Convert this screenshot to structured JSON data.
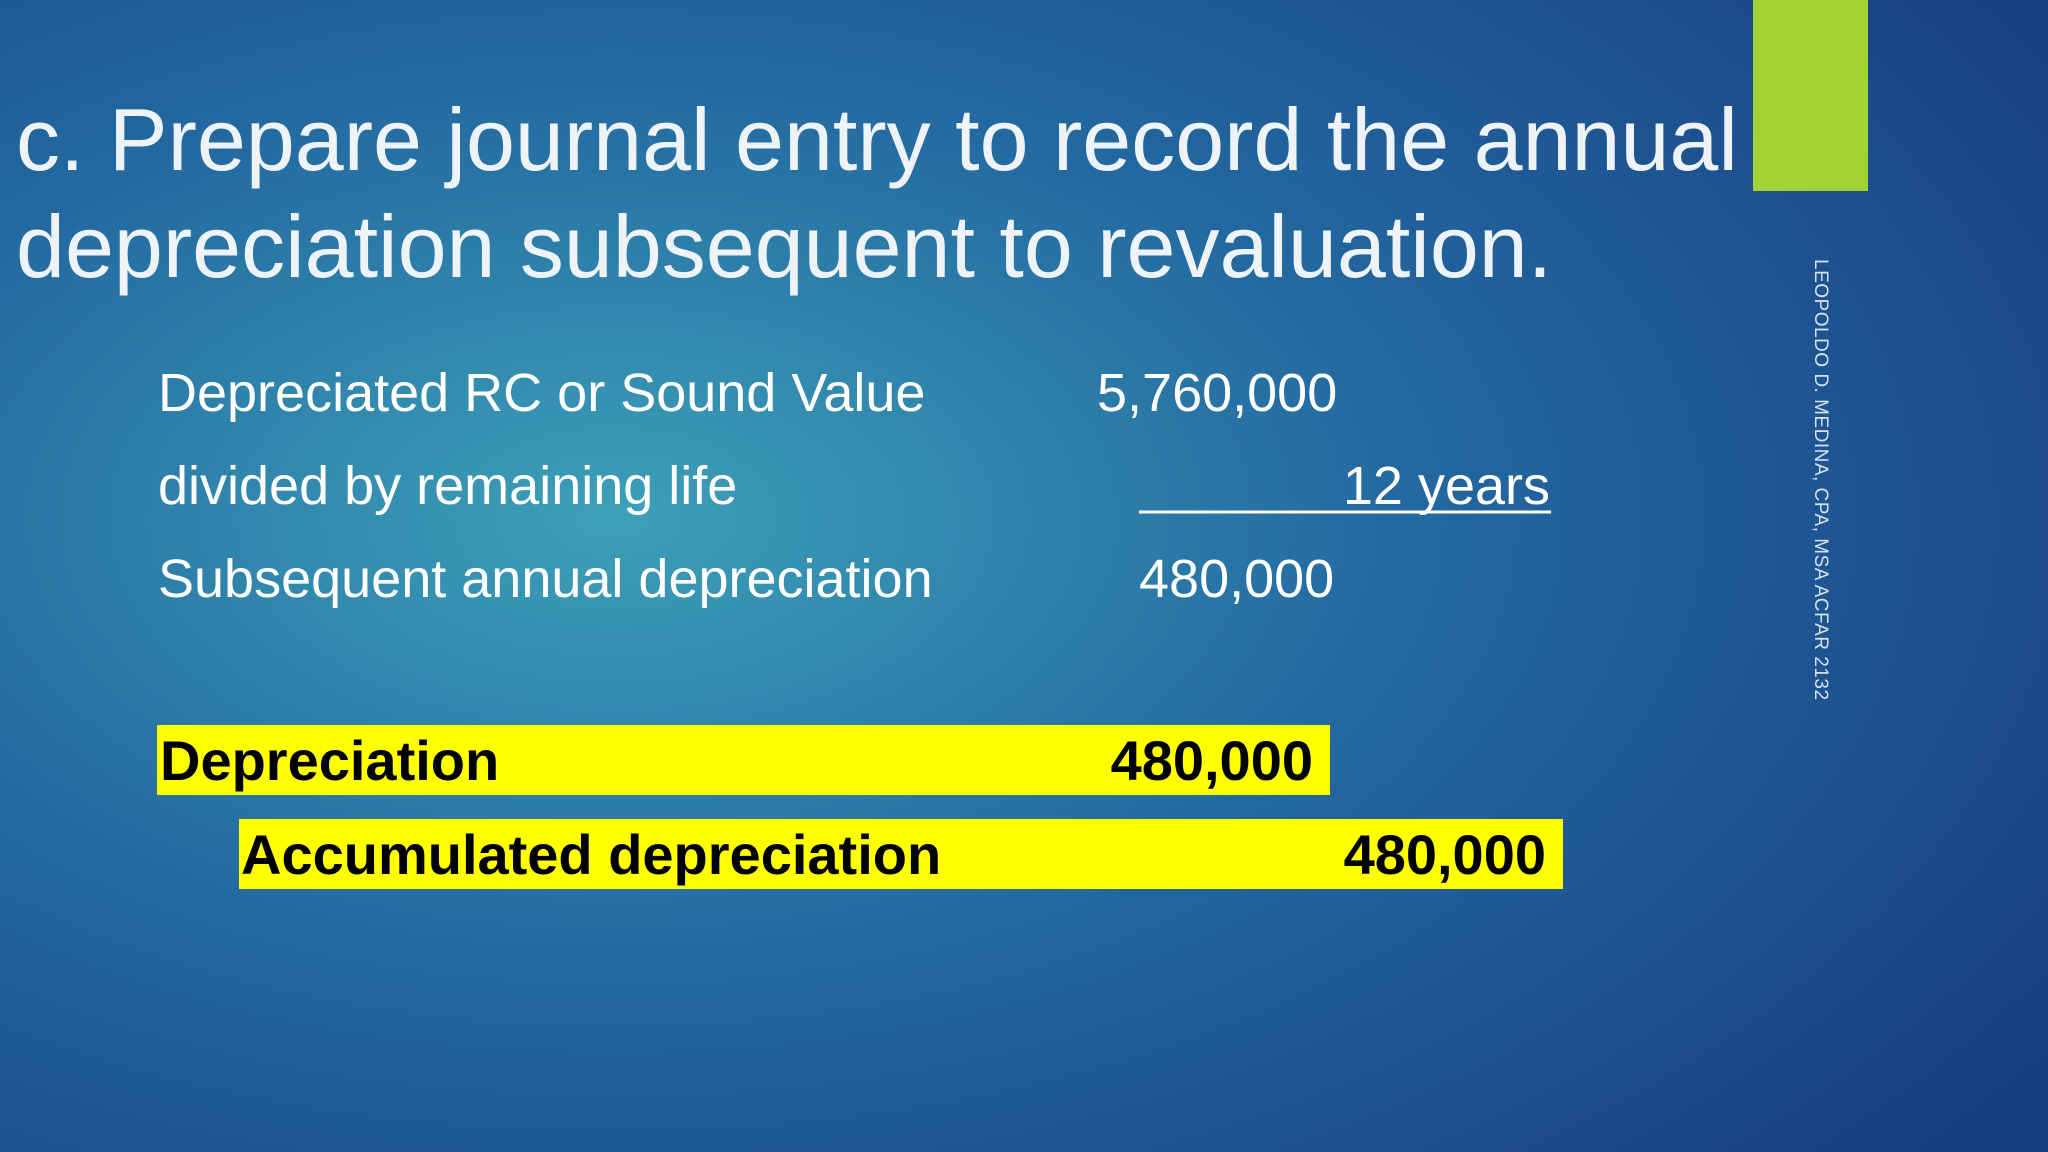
{
  "title": {
    "lines": [
      "c. Prepare journal entry to record the annual",
      "depreciation subsequent to revaluation."
    ]
  },
  "computation": {
    "rows": [
      {
        "label": "Depreciated RC or Sound Value",
        "value": "5,760,000"
      },
      {
        "label": "divided by remaining life",
        "value": "12 years"
      },
      {
        "label": "Subsequent annual depreciation",
        "value": "480,000"
      }
    ]
  },
  "journal_entry": {
    "debit": {
      "account": "Depreciation",
      "amount": "480,000"
    },
    "credit": {
      "account": "Accumulated depreciation",
      "amount": "480,000"
    }
  },
  "footer": {
    "author": "LEOPOLDO D. MEDINA, CPA, MSA ACFAR 2132"
  }
}
